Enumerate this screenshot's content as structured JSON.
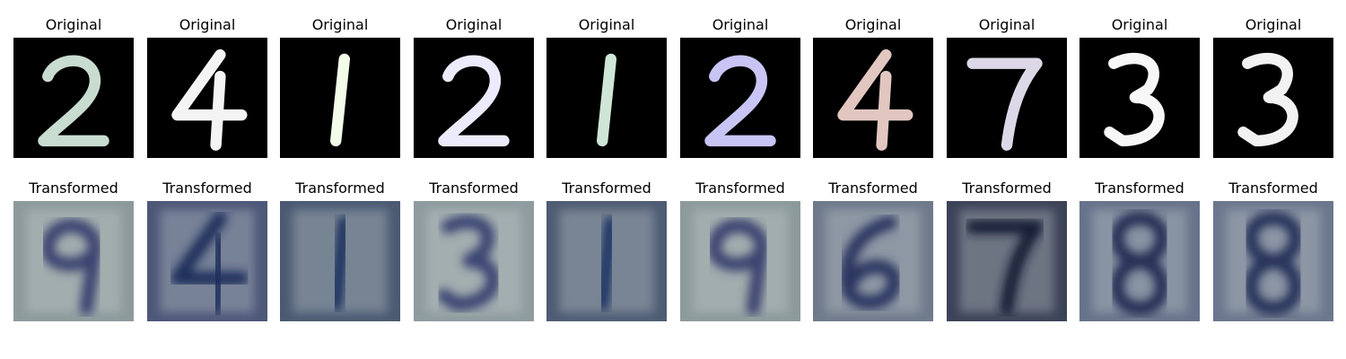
{
  "rows": [
    {
      "name": "original",
      "title": "Original",
      "background": "#000000",
      "items": [
        {
          "digit": "2",
          "color": "#c9dcd0"
        },
        {
          "digit": "4",
          "color": "#f4f4f4"
        },
        {
          "digit": "1",
          "color": "#f3fbe9"
        },
        {
          "digit": "2",
          "color": "#ecebfb"
        },
        {
          "digit": "1",
          "color": "#cfe6d6"
        },
        {
          "digit": "2",
          "color": "#c8c5f5"
        },
        {
          "digit": "4",
          "color": "#e2c7c0"
        },
        {
          "digit": "7",
          "color": "#dcd8e8"
        },
        {
          "digit": "3",
          "color": "#f7f7f7"
        },
        {
          "digit": "3",
          "color": "#f2f2f2"
        }
      ]
    },
    {
      "name": "transformed",
      "title": "Transformed",
      "items": [
        {
          "digit": "9",
          "bg": "#8d9a9c",
          "stroke": "#3a4270"
        },
        {
          "digit": "4",
          "bg": "#4d5778",
          "stroke": "#1f2f5c"
        },
        {
          "digit": "1",
          "bg": "#4b5a72",
          "stroke": "#1e3360"
        },
        {
          "digit": "3",
          "bg": "#8f9c9f",
          "stroke": "#3b4472"
        },
        {
          "digit": "1",
          "bg": "#4e5c74",
          "stroke": "#1f3563"
        },
        {
          "digit": "9",
          "bg": "#8d9a9c",
          "stroke": "#3a4270"
        },
        {
          "digit": "6",
          "bg": "#6f7a8c",
          "stroke": "#2b3560"
        },
        {
          "digit": "7",
          "bg": "#3c4258",
          "stroke": "#161b35"
        },
        {
          "digit": "8",
          "bg": "#66738a",
          "stroke": "#252f55"
        },
        {
          "digit": "8",
          "bg": "#6b778d",
          "stroke": "#27315a"
        }
      ]
    }
  ]
}
